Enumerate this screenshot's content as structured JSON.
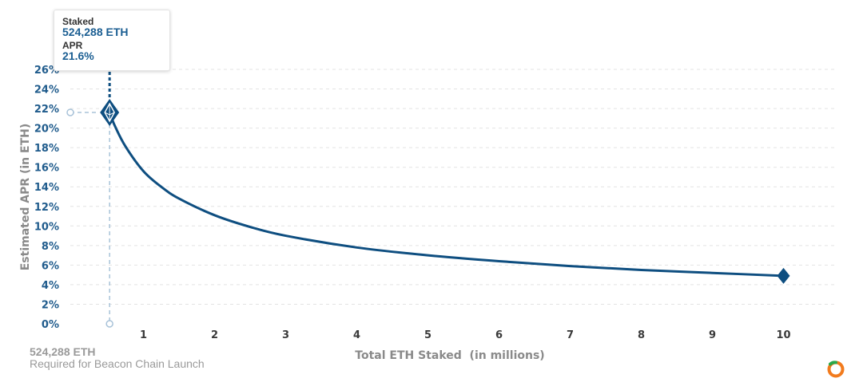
{
  "chart_data": {
    "type": "line",
    "xlabel": "Total ETH Staked  (in millions)",
    "ylabel": "Estimated APR (in ETH)",
    "x_ticks": [
      "1",
      "2",
      "3",
      "4",
      "5",
      "6",
      "7",
      "8",
      "9",
      "10"
    ],
    "y_ticks": [
      "0%",
      "2%",
      "4%",
      "6%",
      "8%",
      "10%",
      "12%",
      "14%",
      "16%",
      "18%",
      "20%",
      "22%",
      "24%",
      "26%"
    ],
    "xlim": [
      0,
      10.5
    ],
    "ylim": [
      0,
      26
    ],
    "grid": true,
    "series": [
      {
        "x": [
          0.524288,
          0.6,
          0.75,
          1,
          1.25,
          1.5,
          2,
          2.5,
          3,
          4,
          5,
          6,
          7,
          8,
          9,
          10
        ],
        "y": [
          21.6,
          20.2,
          18.1,
          15.6,
          14.0,
          12.8,
          11.1,
          9.9,
          9.0,
          7.8,
          7.0,
          6.4,
          5.9,
          5.5,
          5.2,
          4.9
        ]
      }
    ],
    "highlight_point": {
      "x": 0.524288,
      "y": 21.6
    },
    "end_point": {
      "x": 10,
      "y": 4.9
    },
    "line_color": "#0e4e80",
    "guide_color": "#a9c3d9"
  },
  "tooltip": {
    "staked_label": "Staked",
    "staked_value": "524,288 ETH",
    "apr_label": "APR",
    "apr_value": "21.6%"
  },
  "footer": {
    "value": "524,288 ETH",
    "caption": "Required for Beacon Chain Launch"
  },
  "icons": {
    "marker": "ethereum-diamond-icon",
    "end_marker": "diamond-icon",
    "logo": "ring-logo-icon"
  },
  "colors": {
    "accent": "#0e4e80",
    "logo_orange": "#f27b1d",
    "logo_green": "#2aa84a"
  }
}
